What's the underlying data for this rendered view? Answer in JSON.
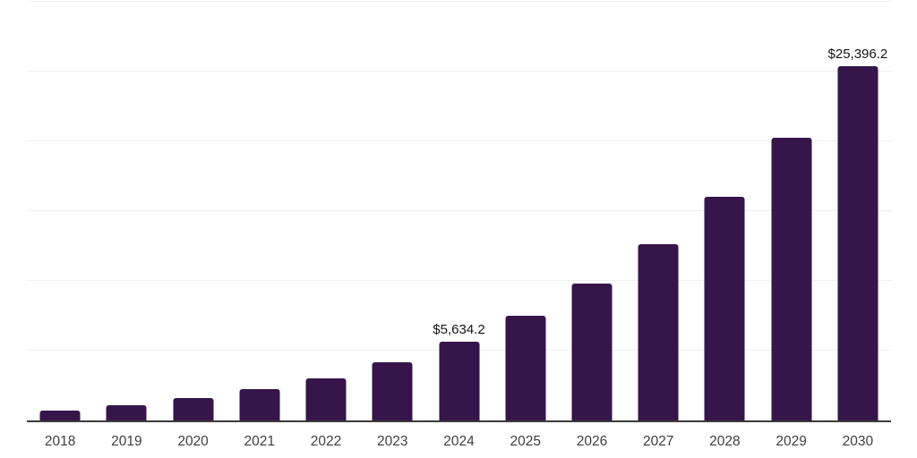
{
  "chart": {
    "background_color": "#ffffff",
    "bar_color": "#36154a",
    "gridline_color": "#f0f0f0",
    "axis_line_color": "#3a3a3a",
    "tick_label_color": "#3f3f3f",
    "data_label_color": "#141414"
  },
  "chart_data": {
    "type": "bar",
    "title": "",
    "xlabel": "",
    "ylabel": "",
    "categories": [
      "2018",
      "2019",
      "2020",
      "2021",
      "2022",
      "2023",
      "2024",
      "2025",
      "2026",
      "2027",
      "2028",
      "2029",
      "2030"
    ],
    "values": [
      690,
      1090,
      1600,
      2240,
      3030,
      4160,
      5634.2,
      7500,
      9810,
      12630,
      16000,
      20270,
      25396.2
    ],
    "data_labels": [
      "",
      "",
      "",
      "",
      "",
      "",
      "$5,634.2",
      "",
      "",
      "",
      "",
      "",
      "$25,396.2"
    ],
    "ylim": [
      0,
      30000
    ],
    "gridline_interval": 5000,
    "grid": "horizontal",
    "y_tick_labels_visible": false,
    "legend": "none"
  }
}
